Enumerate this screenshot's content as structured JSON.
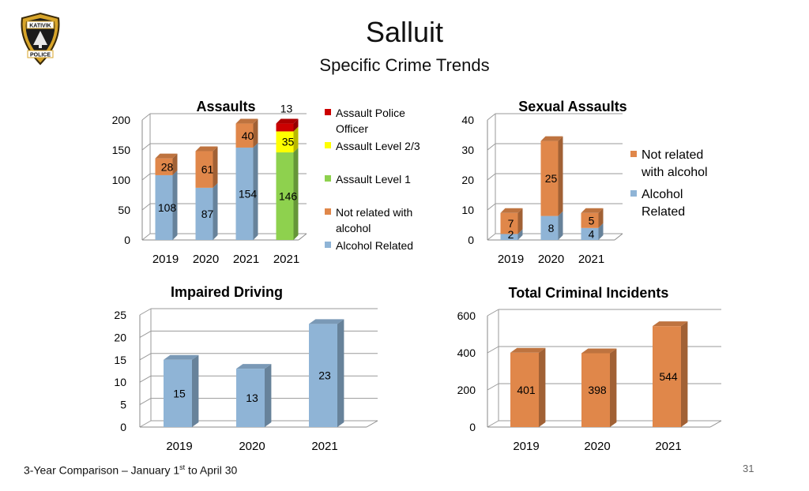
{
  "header": {
    "title": "Salluit",
    "subtitle": "Specific Crime Trends",
    "logo_text_top": "KATIVIK",
    "logo_text_bottom": "POLICE"
  },
  "footer": {
    "text_before": "3-Year Comparison – January 1",
    "superscript": "st",
    "text_after": " to April 30",
    "page_number": "31"
  },
  "colors": {
    "alcohol": "#8fb4d6",
    "not_alcohol": "#e0874a",
    "level1": "#8ed14e",
    "level23": "#ffff00",
    "police_officer": "#cc0000"
  },
  "chart_data": [
    {
      "id": "assaults",
      "type": "bar",
      "stacked": true,
      "title": "Assaults",
      "categories": [
        "2019",
        "2020",
        "2021",
        "2021"
      ],
      "ylim": [
        0,
        200
      ],
      "yticks": [
        "0",
        "50",
        "100",
        "150",
        "200"
      ],
      "series": [
        {
          "name": "Alcohol Related",
          "color": "#8fb4d6",
          "values": [
            108,
            87,
            154,
            0
          ]
        },
        {
          "name": "Not related with alcohol",
          "color": "#e0874a",
          "values": [
            28,
            61,
            40,
            0
          ]
        },
        {
          "name": "Assault Level 1",
          "color": "#8ed14e",
          "values": [
            0,
            0,
            0,
            146
          ]
        },
        {
          "name": "Assault Level 2/3",
          "color": "#ffff00",
          "values": [
            0,
            0,
            0,
            35
          ]
        },
        {
          "name": "Assault Police Officer",
          "color": "#cc0000",
          "values": [
            0,
            0,
            0,
            13
          ]
        }
      ],
      "legend": [
        {
          "label": "Assault Police Officer",
          "color": "#cc0000"
        },
        {
          "label": "Assault Level 2/3",
          "color": "#ffff00"
        },
        {
          "label": "Assault Level 1",
          "color": "#8ed14e"
        },
        {
          "label": "Not related with alcohol",
          "color": "#e0874a"
        },
        {
          "label": "Alcohol Related",
          "color": "#8fb4d6"
        }
      ],
      "legend_position": "right",
      "grid": true
    },
    {
      "id": "sexual",
      "type": "bar",
      "stacked": true,
      "title": "Sexual Assaults",
      "categories": [
        "2019",
        "2020",
        "2021"
      ],
      "ylim": [
        0,
        40
      ],
      "yticks": [
        "0",
        "10",
        "20",
        "30",
        "40"
      ],
      "series": [
        {
          "name": "Alcohol Related",
          "color": "#8fb4d6",
          "values": [
            2,
            8,
            4
          ]
        },
        {
          "name": "Not related with alcohol",
          "color": "#e0874a",
          "values": [
            7,
            25,
            5
          ]
        }
      ],
      "legend": [
        {
          "label": "Not related with alcohol",
          "color": "#e0874a"
        },
        {
          "label": "Alcohol Related",
          "color": "#8fb4d6"
        }
      ],
      "legend_position": "right",
      "grid": true
    },
    {
      "id": "impaired",
      "type": "bar",
      "stacked": false,
      "title": "Impaired Driving",
      "categories": [
        "2019",
        "2020",
        "2021"
      ],
      "ylim": [
        0,
        25
      ],
      "yticks": [
        "0",
        "5",
        "10",
        "15",
        "20",
        "25"
      ],
      "series": [
        {
          "name": "",
          "color": "#8fb4d6",
          "values": [
            15,
            13,
            23
          ]
        }
      ],
      "legend": [],
      "grid": true
    },
    {
      "id": "total",
      "type": "bar",
      "stacked": false,
      "title": "Total Criminal Incidents",
      "categories": [
        "2019",
        "2020",
        "2021"
      ],
      "ylim": [
        0,
        600
      ],
      "yticks": [
        "0",
        "200",
        "400",
        "600"
      ],
      "series": [
        {
          "name": "",
          "color": "#e0874a",
          "values": [
            401,
            398,
            544
          ]
        }
      ],
      "legend": [],
      "grid": true
    }
  ]
}
